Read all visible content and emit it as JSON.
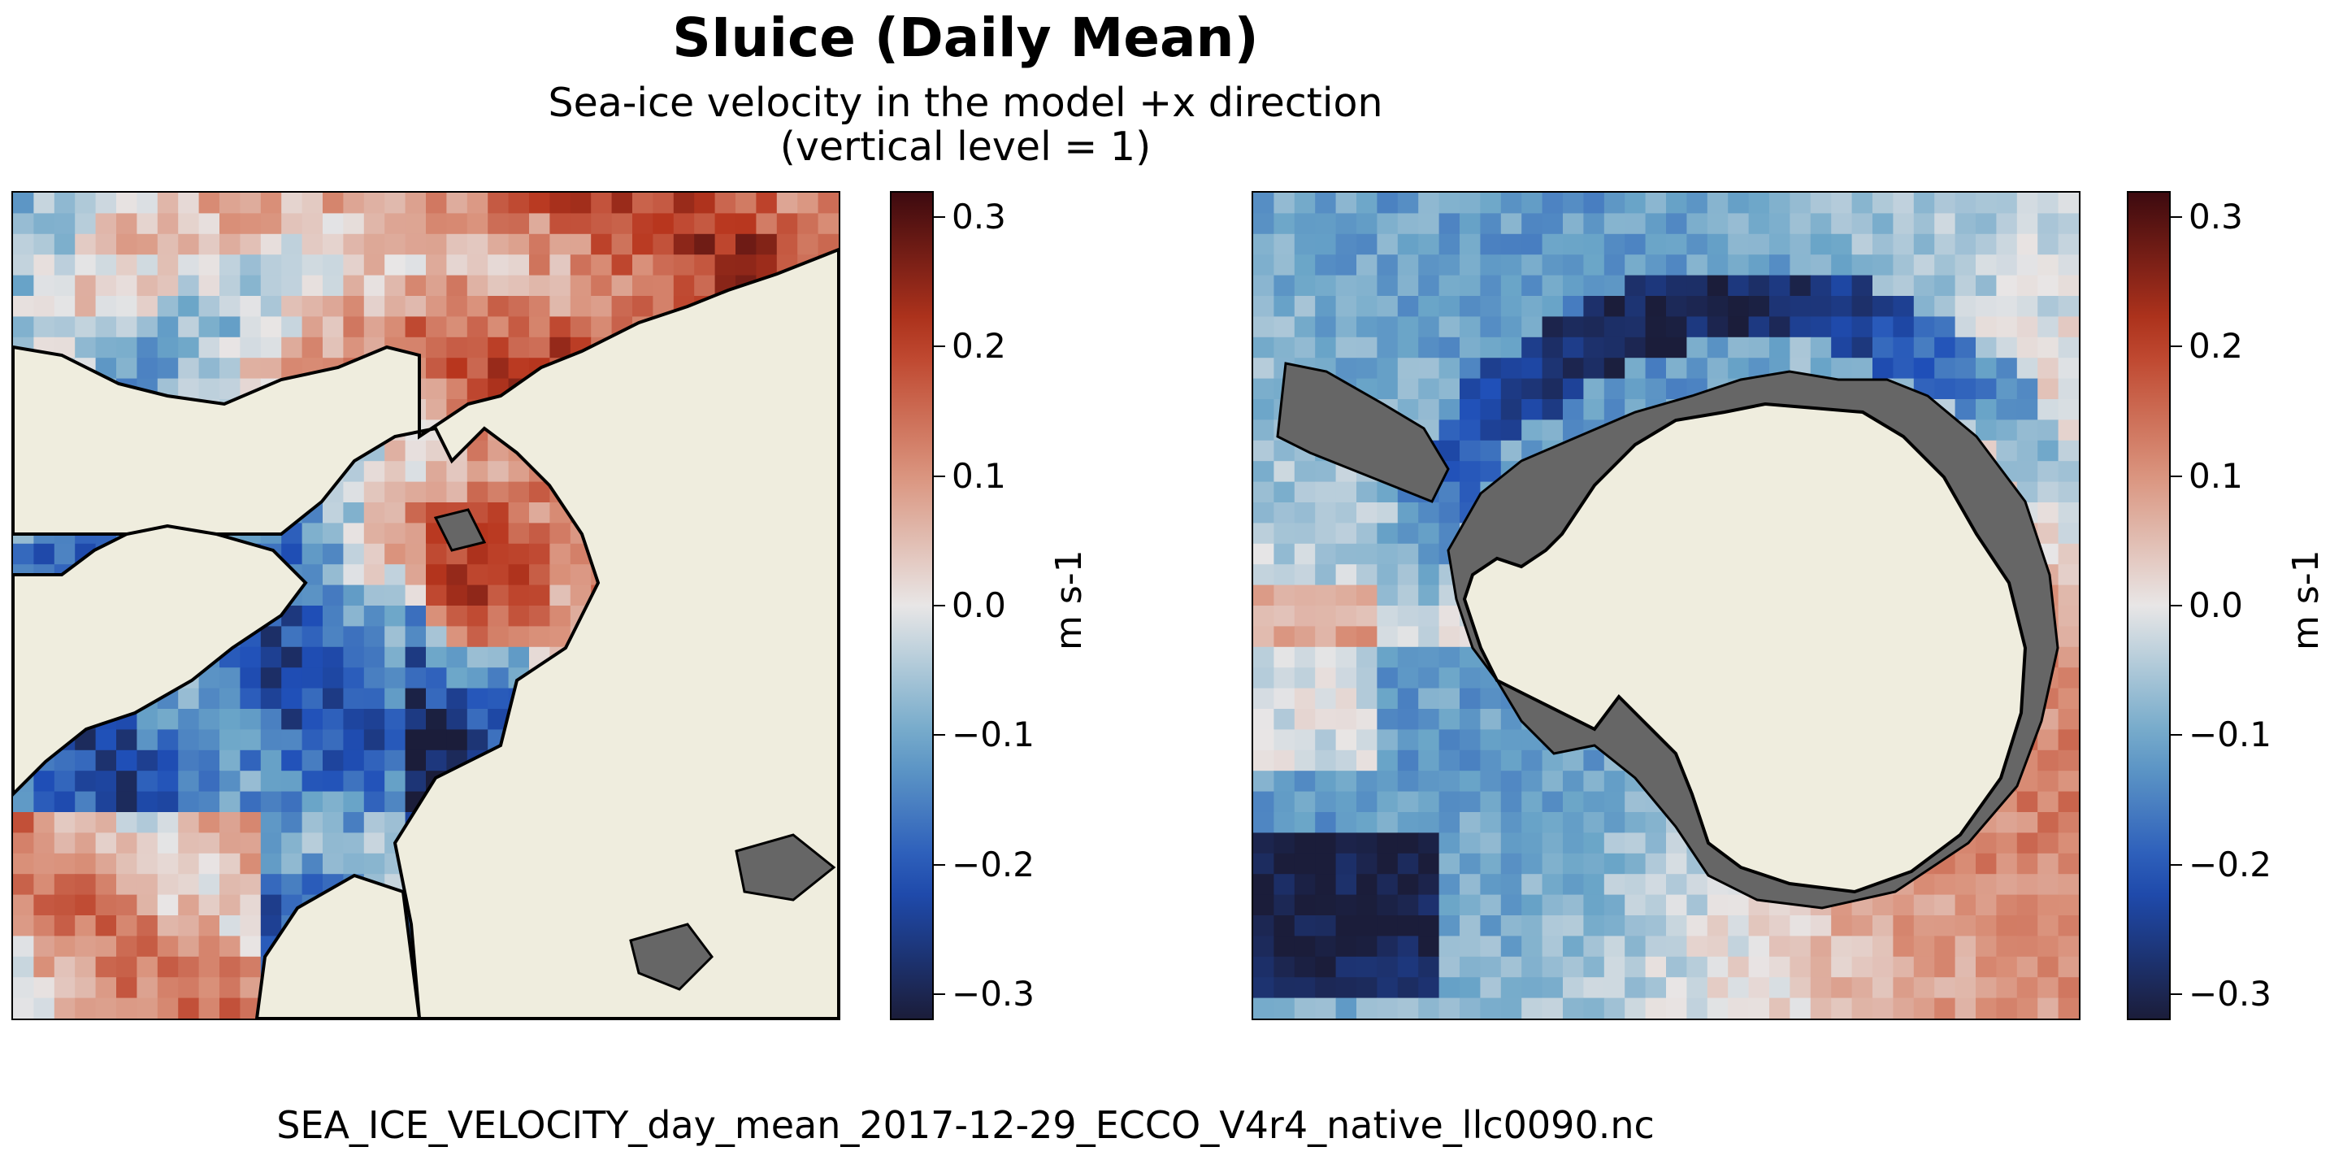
{
  "title": "SIuice (Daily Mean)",
  "subtitle_line1": "Sea-ice velocity in the model +x direction",
  "subtitle_line2": "(vertical level = 1)",
  "footer": "SEA_ICE_VELOCITY_day_mean_2017-12-29_ECCO_V4r4_native_llc0090.nc",
  "colors": {
    "land": "#efedde",
    "landmask_gray": "#666666",
    "colormap": [
      "#1b1d3a",
      "#1f4fb8",
      "#6aa5c8",
      "#e8e6e6",
      "#d98f78",
      "#b8361e",
      "#3d0a0f"
    ]
  },
  "chart_data": [
    {
      "type": "heatmap",
      "panel": "north-polar-stereographic",
      "variable": "SIuice",
      "vmin": -0.32,
      "vmax": 0.32,
      "colorbar": {
        "label": "m s-1",
        "ticks": [
          0.3,
          0.2,
          0.1,
          0.0,
          -0.1,
          -0.2,
          -0.3
        ],
        "tick_labels": [
          "0.3",
          "0.2",
          "0.1",
          "0.0",
          "−0.1",
          "−0.2",
          "−0.3"
        ]
      }
    },
    {
      "type": "heatmap",
      "panel": "south-polar-stereographic",
      "variable": "SIuice",
      "vmin": -0.32,
      "vmax": 0.32,
      "colorbar": {
        "label": "m s-1",
        "ticks": [
          0.3,
          0.2,
          0.1,
          0.0,
          -0.1,
          -0.2,
          -0.3
        ],
        "tick_labels": [
          "0.3",
          "0.2",
          "0.1",
          "0.0",
          "−0.1",
          "−0.2",
          "−0.3"
        ]
      }
    }
  ]
}
